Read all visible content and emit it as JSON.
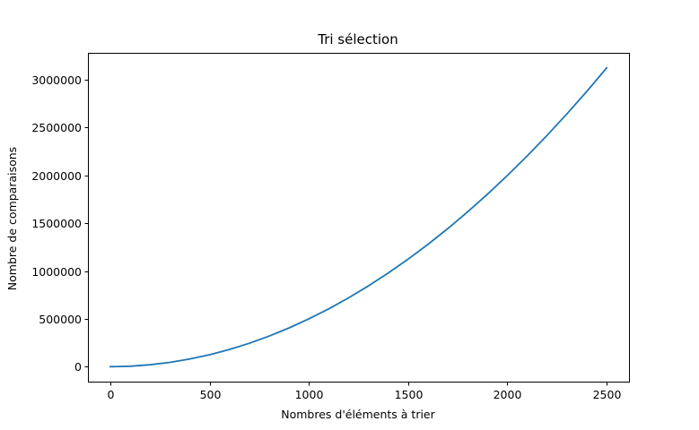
{
  "chart_data": {
    "type": "line",
    "title": "Tri sélection",
    "xlabel": "Nombres d'éléments à trier",
    "ylabel": "Nombre de comparaisons",
    "xlim": [
      -112.5,
      2612.5
    ],
    "ylim": [
      -156250,
      3281250
    ],
    "xticks": [
      0,
      500,
      1000,
      1500,
      2000,
      2500
    ],
    "xtick_labels": [
      "0",
      "500",
      "1000",
      "1500",
      "2000",
      "2500"
    ],
    "yticks": [
      0,
      500000,
      1000000,
      1500000,
      2000000,
      2500000,
      3000000
    ],
    "ytick_labels": [
      "0",
      "500000",
      "1000000",
      "1500000",
      "2000000",
      "2500000",
      "3000000"
    ],
    "grid": false,
    "series": [
      {
        "name": "comparaisons",
        "color": "#1f77b4",
        "x": [
          0,
          100,
          200,
          300,
          400,
          500,
          600,
          700,
          800,
          900,
          1000,
          1100,
          1200,
          1300,
          1400,
          1500,
          1600,
          1700,
          1800,
          1900,
          2000,
          2100,
          2200,
          2300,
          2400,
          2500
        ],
        "y": [
          0,
          4950,
          19900,
          44850,
          79800,
          124750,
          179700,
          244650,
          319600,
          404550,
          499500,
          604450,
          719400,
          844350,
          979300,
          1124250,
          1279200,
          1444150,
          1619100,
          1804050,
          1999000,
          2203950,
          2418900,
          2643850,
          2878800,
          3123750
        ]
      }
    ]
  }
}
